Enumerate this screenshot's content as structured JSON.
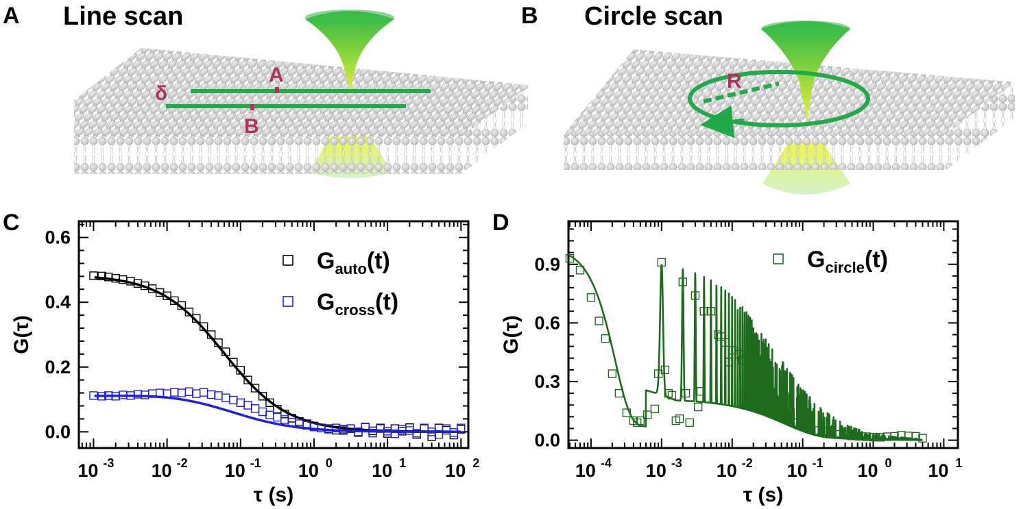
{
  "panels": {
    "A": {
      "letter": "A",
      "title": "Line scan",
      "label_delta": "δ",
      "label_a": "A",
      "label_b": "B"
    },
    "B": {
      "letter": "B",
      "title": "Circle scan",
      "label_r": "R"
    },
    "C": {
      "letter": "C"
    },
    "D": {
      "letter": "D"
    }
  },
  "colors": {
    "auto": "#000000",
    "cross": "#1f1fdc",
    "circle": "#1e6b1e",
    "scan_line": "#22aa4a",
    "marker": "#b0305e",
    "lipid": "#cfcfcf"
  },
  "chart_data": [
    {
      "id": "C",
      "type": "scatter",
      "xscale": "log",
      "xlim": [
        0.000631,
        125.9
      ],
      "ylim": [
        -0.05,
        0.65
      ],
      "xlabel": "τ (s)",
      "ylabel": "G(τ)",
      "x_ticks": [
        {
          "value": 0.001,
          "base": "10",
          "exp": "-3"
        },
        {
          "value": 0.01,
          "base": "10",
          "exp": "-2"
        },
        {
          "value": 0.1,
          "base": "10",
          "exp": "-1"
        },
        {
          "value": 1,
          "base": "10",
          "exp": "0"
        },
        {
          "value": 10,
          "base": "10",
          "exp": "1"
        },
        {
          "value": 100,
          "base": "10",
          "exp": "2"
        }
      ],
      "y_ticks": [
        {
          "value": 0.0,
          "label": "0.0"
        },
        {
          "value": 0.2,
          "label": "0.2"
        },
        {
          "value": 0.4,
          "label": "0.4"
        },
        {
          "value": 0.6,
          "label": "0.6"
        }
      ],
      "legend_position": "top-right",
      "series": [
        {
          "name": "G_auto(t)",
          "legend_main": "G",
          "legend_sub": "auto",
          "legend_tail": "(t)",
          "color": "#000000",
          "fit": {
            "model": "diffusion",
            "G0": 0.485,
            "tau_d": 0.06
          },
          "points": [
            [
              0.001,
              0.482
            ],
            [
              0.0013,
              0.481
            ],
            [
              0.0016,
              0.478
            ],
            [
              0.002,
              0.474
            ],
            [
              0.0025,
              0.47
            ],
            [
              0.0032,
              0.465
            ],
            [
              0.004,
              0.458
            ],
            [
              0.005,
              0.451
            ],
            [
              0.0063,
              0.442
            ],
            [
              0.008,
              0.43
            ],
            [
              0.01,
              0.42
            ],
            [
              0.0126,
              0.405
            ],
            [
              0.0158,
              0.39
            ],
            [
              0.02,
              0.37
            ],
            [
              0.025,
              0.35
            ],
            [
              0.0316,
              0.325
            ],
            [
              0.04,
              0.3
            ],
            [
              0.05,
              0.275
            ],
            [
              0.063,
              0.247
            ],
            [
              0.08,
              0.215
            ],
            [
              0.1,
              0.19
            ],
            [
              0.126,
              0.16
            ],
            [
              0.158,
              0.135
            ],
            [
              0.2,
              0.11
            ],
            [
              0.25,
              0.09
            ],
            [
              0.316,
              0.07
            ],
            [
              0.4,
              0.055
            ],
            [
              0.5,
              0.042
            ],
            [
              0.63,
              0.032
            ],
            [
              0.8,
              0.025
            ],
            [
              1.0,
              0.018
            ],
            [
              1.26,
              0.012
            ],
            [
              1.58,
              0.01
            ],
            [
              2.0,
              0.005
            ],
            [
              2.5,
              0.008
            ],
            [
              3.16,
              0.01
            ],
            [
              4.0,
              -0.002
            ],
            [
              5.0,
              0.015
            ],
            [
              6.3,
              0.003
            ],
            [
              8.0,
              0.012
            ],
            [
              10,
              -0.005
            ],
            [
              12.6,
              0.01
            ],
            [
              15.8,
              0.002
            ],
            [
              20,
              0.013
            ],
            [
              25,
              -0.008
            ],
            [
              31.6,
              0.01
            ],
            [
              40,
              -0.015
            ],
            [
              50,
              0.012
            ],
            [
              63,
              0.005
            ],
            [
              80,
              -0.01
            ],
            [
              100,
              0.008
            ]
          ]
        },
        {
          "name": "G_cross(t)",
          "legend_main": "G",
          "legend_sub": "cross",
          "legend_tail": "(t)",
          "color": "#1f1fdc",
          "fit": {
            "model": "bump",
            "base": 0.11,
            "amp": 0.01,
            "tau_d": 0.08
          },
          "points": [
            [
              0.001,
              0.112
            ],
            [
              0.0013,
              0.11
            ],
            [
              0.0016,
              0.112
            ],
            [
              0.002,
              0.11
            ],
            [
              0.0025,
              0.114
            ],
            [
              0.0032,
              0.112
            ],
            [
              0.004,
              0.116
            ],
            [
              0.005,
              0.114
            ],
            [
              0.0063,
              0.118
            ],
            [
              0.008,
              0.12
            ],
            [
              0.01,
              0.118
            ],
            [
              0.0126,
              0.122
            ],
            [
              0.0158,
              0.12
            ],
            [
              0.02,
              0.124
            ],
            [
              0.025,
              0.118
            ],
            [
              0.0316,
              0.122
            ],
            [
              0.04,
              0.115
            ],
            [
              0.05,
              0.112
            ],
            [
              0.063,
              0.105
            ],
            [
              0.08,
              0.098
            ],
            [
              0.1,
              0.09
            ],
            [
              0.126,
              0.082
            ],
            [
              0.158,
              0.072
            ],
            [
              0.2,
              0.062
            ],
            [
              0.25,
              0.052
            ],
            [
              0.316,
              0.045
            ],
            [
              0.4,
              0.038
            ],
            [
              0.5,
              0.03
            ],
            [
              0.63,
              0.025
            ],
            [
              0.8,
              0.02
            ],
            [
              1.0,
              0.015
            ],
            [
              1.26,
              0.012
            ],
            [
              1.58,
              0.008
            ],
            [
              2.0,
              0.012
            ],
            [
              2.5,
              0.004
            ],
            [
              3.16,
              0.01
            ],
            [
              4.0,
              0.0
            ],
            [
              5.0,
              0.014
            ],
            [
              6.3,
              -0.004
            ],
            [
              8.0,
              0.01
            ],
            [
              10,
              0.002
            ],
            [
              12.6,
              -0.006
            ],
            [
              15.8,
              0.008
            ],
            [
              20,
              0.004
            ],
            [
              25,
              -0.004
            ],
            [
              31.6,
              0.012
            ],
            [
              40,
              0.0
            ],
            [
              50,
              -0.008
            ],
            [
              63,
              0.01
            ],
            [
              80,
              -0.002
            ],
            [
              100,
              0.012
            ]
          ]
        }
      ]
    },
    {
      "id": "D",
      "type": "scatter",
      "xscale": "log",
      "xlim": [
        4.786e-05,
        15.85
      ],
      "ylim": [
        -0.04,
        1.12
      ],
      "xlabel": "τ (s)",
      "ylabel": "G(τ)",
      "x_ticks": [
        {
          "value": 0.0001,
          "base": "10",
          "exp": "-4"
        },
        {
          "value": 0.001,
          "base": "10",
          "exp": "-3"
        },
        {
          "value": 0.01,
          "base": "10",
          "exp": "-2"
        },
        {
          "value": 0.1,
          "base": "10",
          "exp": "-1"
        },
        {
          "value": 1,
          "base": "10",
          "exp": "0"
        },
        {
          "value": 10,
          "base": "10",
          "exp": "1"
        }
      ],
      "y_ticks": [
        {
          "value": 0.0,
          "label": "0.0"
        },
        {
          "value": 0.3,
          "label": "0.3"
        },
        {
          "value": 0.6,
          "label": "0.6"
        },
        {
          "value": 0.9,
          "label": "0.9"
        }
      ],
      "legend_position": "top-right",
      "series": [
        {
          "name": "G_circle(t)",
          "legend_main": "G",
          "legend_sub": "circle",
          "legend_tail": "(t)",
          "color": "#1e6b1e",
          "fit": {
            "model": "circle",
            "period": 0.001,
            "G0": 0.92,
            "tau_d": 0.04,
            "gamma": 0.035
          },
          "points": [
            [
              5e-05,
              0.93
            ],
            [
              7e-05,
              0.87
            ],
            [
              0.0001,
              0.73
            ],
            [
              0.00013,
              0.61
            ],
            [
              0.00016,
              0.52
            ],
            [
              0.0002,
              0.34
            ],
            [
              0.00025,
              0.24
            ],
            [
              0.00032,
              0.14
            ],
            [
              0.0004,
              0.1
            ],
            [
              0.00045,
              0.09
            ],
            [
              0.0005,
              0.1
            ],
            [
              0.00063,
              0.13
            ],
            [
              0.0008,
              0.16
            ],
            [
              0.0009,
              0.34
            ],
            [
              0.001,
              0.91
            ],
            [
              0.00112,
              0.36
            ],
            [
              0.00125,
              0.24
            ],
            [
              0.0014,
              0.23
            ],
            [
              0.0016,
              0.1
            ],
            [
              0.0018,
              0.11
            ],
            [
              0.002,
              0.81
            ],
            [
              0.0022,
              0.24
            ],
            [
              0.0025,
              0.09
            ],
            [
              0.003,
              0.74
            ],
            [
              0.0033,
              0.17
            ],
            [
              0.0036,
              0.25
            ],
            [
              0.004,
              0.66
            ],
            [
              0.005,
              0.66
            ],
            [
              0.0063,
              0.54
            ],
            [
              0.007,
              0.53
            ],
            [
              0.008,
              0.5
            ],
            [
              0.009,
              0.4
            ],
            [
              0.01,
              0.46
            ],
            [
              0.0126,
              0.44
            ],
            [
              0.014,
              0.41
            ],
            [
              0.0158,
              0.3
            ],
            [
              0.02,
              0.26
            ],
            [
              0.025,
              0.23
            ],
            [
              0.0316,
              0.22
            ],
            [
              0.04,
              0.18
            ],
            [
              0.05,
              0.14
            ],
            [
              0.063,
              0.11
            ],
            [
              0.08,
              0.09
            ],
            [
              0.1,
              0.075
            ],
            [
              0.126,
              0.06
            ],
            [
              0.158,
              0.05
            ],
            [
              0.2,
              0.045
            ],
            [
              0.25,
              0.038
            ],
            [
              0.316,
              0.03
            ],
            [
              0.4,
              0.028
            ],
            [
              0.5,
              0.022
            ],
            [
              0.63,
              0.02
            ],
            [
              0.8,
              0.018
            ],
            [
              1.0,
              0.016
            ],
            [
              1.26,
              0.015
            ],
            [
              1.58,
              0.018
            ],
            [
              2.0,
              0.02
            ],
            [
              2.5,
              0.025
            ],
            [
              3.16,
              0.022
            ],
            [
              4.0,
              0.02
            ],
            [
              5.0,
              0.01
            ]
          ]
        }
      ]
    }
  ]
}
